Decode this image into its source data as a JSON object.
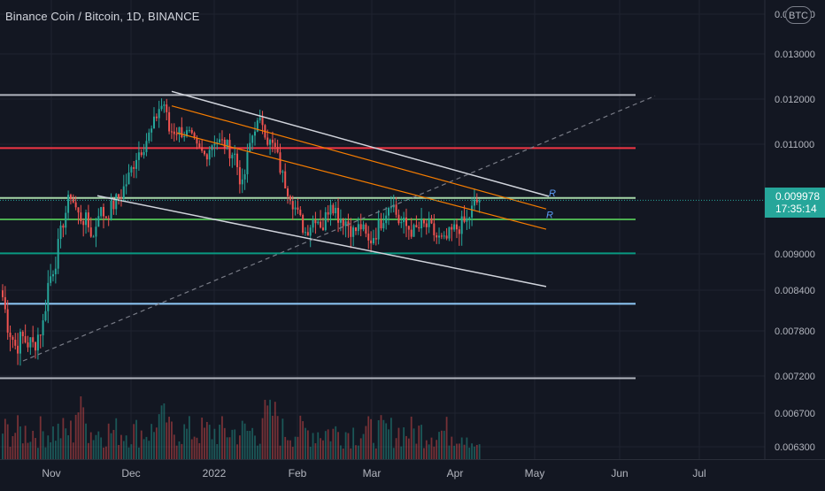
{
  "header": {
    "title": "Binance Coin / Bitcoin, 1D, BINANCE",
    "currency_badge": "BTC"
  },
  "price_tag": {
    "price": "0.009978",
    "countdown": "17:35:14"
  },
  "colors": {
    "background": "#131722",
    "up_candle": "#26a69a",
    "down_candle": "#ef5350",
    "red_level": "#f23645",
    "green_level": "#4caf50",
    "light_green_level": "#a5d6a7",
    "teal_level": "#089981",
    "blue_level": "#90caf9",
    "grey_level": "#b2b5be",
    "channel_orange": "#f57c00",
    "channel_white": "#d1d4dc"
  },
  "chart_data": {
    "type": "candlestick",
    "title": "Binance Coin / Bitcoin, 1D, BINANCE",
    "x_tick_labels": [
      "Nov",
      "Dec",
      "2022",
      "Feb",
      "Mar",
      "Apr",
      "May",
      "Jun",
      "Jul"
    ],
    "y_tick_labels": [
      "0.014000",
      "0.013000",
      "0.012000",
      "0.011000",
      "0.009000",
      "0.008400",
      "0.007800",
      "0.007200",
      "0.006700",
      "0.006300"
    ],
    "y_range": [
      0.0062,
      0.0142
    ],
    "last_price": 0.009978,
    "horizontal_levels": [
      {
        "price": 0.01209,
        "color": "grey"
      },
      {
        "price": 0.01093,
        "color": "red"
      },
      {
        "price": 0.01002,
        "color": "light-green"
      },
      {
        "price": 0.00963,
        "color": "green"
      },
      {
        "price": 0.00901,
        "color": "teal"
      },
      {
        "price": 0.0082,
        "color": "blue"
      },
      {
        "price": 0.00717,
        "color": "grey"
      }
    ],
    "trendlines": [
      {
        "name": "upper channel",
        "from": {
          "date": "2021-12-10",
          "price": 0.01217
        },
        "to": {
          "date": "2022-05-01",
          "price": 0.01005
        },
        "color": "white"
      },
      {
        "name": "lower channel",
        "from": {
          "date": "2021-11-12",
          "price": 0.01006
        },
        "to": {
          "date": "2022-04-30",
          "price": 0.00846
        },
        "color": "white"
      },
      {
        "name": "orange upper",
        "from": {
          "date": "2021-12-10",
          "price": 0.01185
        },
        "to": {
          "date": "2022-04-30",
          "price": 0.00982
        },
        "color": "orange"
      },
      {
        "name": "orange lower",
        "from": {
          "date": "2021-12-12",
          "price": 0.01125
        },
        "to": {
          "date": "2022-04-30",
          "price": 0.00945
        },
        "color": "orange"
      },
      {
        "name": "dashed support",
        "from": {
          "date": "2021-10-15",
          "price": 0.0074
        },
        "to": {
          "date": "2022-06-10",
          "price": 0.01207
        },
        "color": "grey-dashed"
      }
    ],
    "annotations": [
      {
        "text": "R",
        "date": "2022-05-01",
        "price": 0.01002
      },
      {
        "text": "R",
        "date": "2022-04-30",
        "price": 0.00962
      }
    ],
    "candle_path_closes": [
      [
        0,
        0.0083
      ],
      [
        2,
        0.0079
      ],
      [
        5,
        0.0076
      ],
      [
        8,
        0.0077
      ],
      [
        12,
        0.0076
      ],
      [
        16,
        0.0079
      ],
      [
        18,
        0.0085
      ],
      [
        21,
        0.0089
      ],
      [
        24,
        0.0096
      ],
      [
        27,
        0.0101
      ],
      [
        30,
        0.0097
      ],
      [
        33,
        0.0096
      ],
      [
        36,
        0.0093
      ],
      [
        38,
        0.0098
      ],
      [
        41,
        0.0097
      ],
      [
        44,
        0.0099
      ],
      [
        47,
        0.0101
      ],
      [
        50,
        0.0104
      ],
      [
        53,
        0.0108
      ],
      [
        56,
        0.011
      ],
      [
        59,
        0.0113
      ],
      [
        62,
        0.0118
      ],
      [
        64,
        0.0119
      ],
      [
        66,
        0.0113
      ],
      [
        70,
        0.0113
      ],
      [
        74,
        0.0112
      ],
      [
        77,
        0.0109
      ],
      [
        80,
        0.0108
      ],
      [
        84,
        0.0111
      ],
      [
        88,
        0.011
      ],
      [
        92,
        0.0108
      ],
      [
        95,
        0.0102
      ],
      [
        98,
        0.011
      ],
      [
        100,
        0.0114
      ],
      [
        103,
        0.0115
      ],
      [
        105,
        0.0111
      ],
      [
        108,
        0.0109
      ],
      [
        111,
        0.0104
      ],
      [
        114,
        0.0101
      ],
      [
        117,
        0.0097
      ],
      [
        120,
        0.0094
      ],
      [
        124,
        0.0097
      ],
      [
        127,
        0.0095
      ],
      [
        130,
        0.01
      ],
      [
        133,
        0.0097
      ],
      [
        136,
        0.0096
      ],
      [
        139,
        0.0094
      ],
      [
        142,
        0.0095
      ],
      [
        145,
        0.0092
      ],
      [
        148,
        0.0094
      ],
      [
        151,
        0.0097
      ],
      [
        154,
        0.01
      ],
      [
        157,
        0.0096
      ],
      [
        160,
        0.0095
      ],
      [
        163,
        0.0094
      ],
      [
        166,
        0.0095
      ],
      [
        169,
        0.0095
      ],
      [
        172,
        0.0093
      ],
      [
        175,
        0.0092
      ],
      [
        178,
        0.0094
      ],
      [
        181,
        0.0095
      ],
      [
        184,
        0.0096
      ],
      [
        187,
        0.0099
      ],
      [
        189,
        0.009978
      ]
    ]
  }
}
